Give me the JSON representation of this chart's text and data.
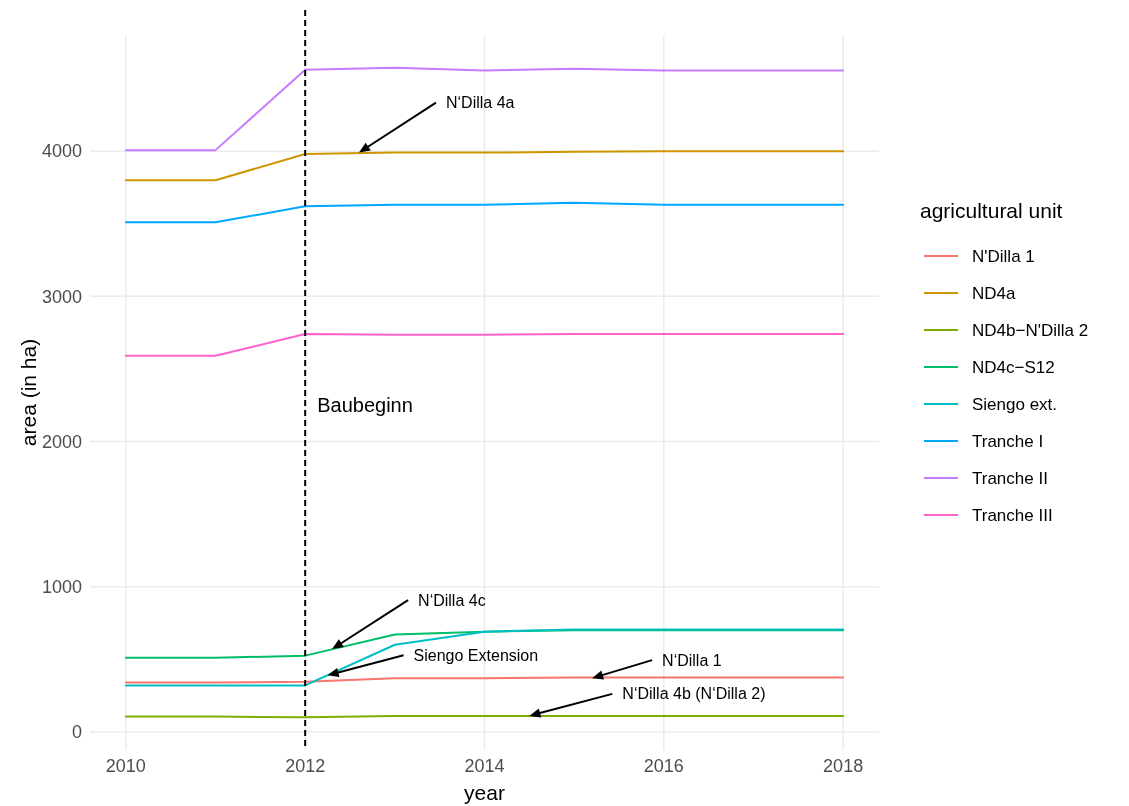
{
  "chart_data": {
    "type": "line",
    "xlabel": "year",
    "ylabel": "area (in ha)",
    "legend_title": "agricultural unit",
    "x": [
      2010,
      2011,
      2012,
      2013,
      2014,
      2015,
      2016,
      2017,
      2018
    ],
    "xlim": [
      2009.6,
      2018.4
    ],
    "xticks": [
      2010,
      2012,
      2014,
      2016,
      2018
    ],
    "ylim": [
      -125,
      4800
    ],
    "yticks": [
      0,
      1000,
      2000,
      3000,
      4000
    ],
    "grid": true,
    "legend": "right",
    "line_style": "solid",
    "marker": "none",
    "series": [
      {
        "name": "N'Dilla 1",
        "color": "#f8766d",
        "values": [
          340,
          340,
          345,
          370,
          370,
          375,
          375,
          375,
          375
        ]
      },
      {
        "name": "ND4a",
        "color": "#cd9600",
        "values": [
          3800,
          3800,
          3980,
          3990,
          3990,
          3995,
          4000,
          4000,
          4000
        ]
      },
      {
        "name": "ND4b−N'Dilla 2",
        "color": "#7cae00",
        "values": [
          105,
          105,
          100,
          110,
          110,
          110,
          110,
          110,
          110
        ]
      },
      {
        "name": "ND4c−S12",
        "color": "#00be67",
        "values": [
          510,
          510,
          525,
          670,
          690,
          700,
          700,
          700,
          700
        ]
      },
      {
        "name": "Siengo ext.",
        "color": "#00bfc4",
        "values": [
          320,
          320,
          320,
          600,
          690,
          705,
          705,
          705,
          705
        ]
      },
      {
        "name": "Tranche I",
        "color": "#00a9ff",
        "values": [
          3510,
          3510,
          3620,
          3630,
          3630,
          3645,
          3630,
          3630,
          3630
        ]
      },
      {
        "name": "Tranche II",
        "color": "#c77cff",
        "values": [
          4007,
          4007,
          4560,
          4575,
          4555,
          4568,
          4555,
          4555,
          4555
        ]
      },
      {
        "name": "Tranche III",
        "color": "#ff61cc",
        "values": [
          2590,
          2590,
          2740,
          2735,
          2735,
          2740,
          2740,
          2740,
          2740
        ]
      }
    ],
    "ref_lines": [
      {
        "axis": "x",
        "value": 2012,
        "label": "Baubeginn",
        "color": "#000000",
        "line_style": "dashed"
      }
    ],
    "annotations": [
      {
        "text": "N‘Dilla 4a",
        "x": 2012.6,
        "y": 3990
      },
      {
        "text": "N‘Dilla 4c",
        "x": 2012.3,
        "y": 570
      },
      {
        "text": "Siengo Extension",
        "x": 2012.25,
        "y": 390
      },
      {
        "text": "N‘Dilla 1",
        "x": 2015.2,
        "y": 370
      },
      {
        "text": "N‘Dilla 4b (N‘Dilla 2)",
        "x": 2014.5,
        "y": 110
      }
    ]
  }
}
